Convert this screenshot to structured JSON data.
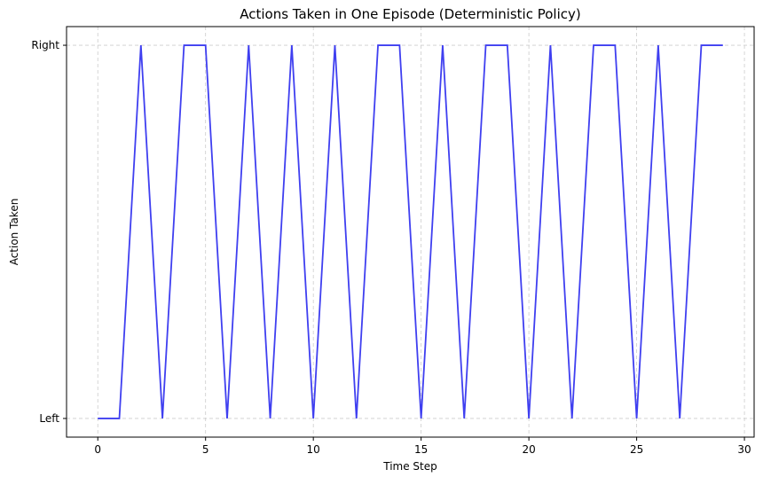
{
  "chart_data": {
    "type": "line",
    "title": "Actions Taken in One Episode (Deterministic Policy)",
    "xlabel": "Time Step",
    "ylabel": "Action Taken",
    "xlim": [
      -1.45,
      30.45
    ],
    "ylim": [
      -0.05,
      1.05
    ],
    "xticks": [
      0,
      5,
      10,
      15,
      20,
      25,
      30
    ],
    "xtick_labels": [
      "0",
      "5",
      "10",
      "15",
      "20",
      "25",
      "30"
    ],
    "yticks": [
      0,
      1
    ],
    "ytick_labels": [
      "Left",
      "Right"
    ],
    "grid": true,
    "legend": "none",
    "series": [
      {
        "color": "#3f3ff0",
        "x": [
          0,
          1,
          2,
          3,
          4,
          5,
          6,
          7,
          8,
          9,
          10,
          11,
          12,
          13,
          14,
          15,
          16,
          17,
          18,
          19,
          20,
          21,
          22,
          23,
          24,
          25,
          26,
          27,
          28,
          29
        ],
        "values": [
          0,
          0,
          1,
          0,
          1,
          1,
          0,
          1,
          0,
          1,
          0,
          1,
          0,
          1,
          1,
          0,
          1,
          0,
          1,
          1,
          0,
          1,
          0,
          1,
          1,
          0,
          1,
          0,
          1,
          1
        ]
      }
    ]
  }
}
